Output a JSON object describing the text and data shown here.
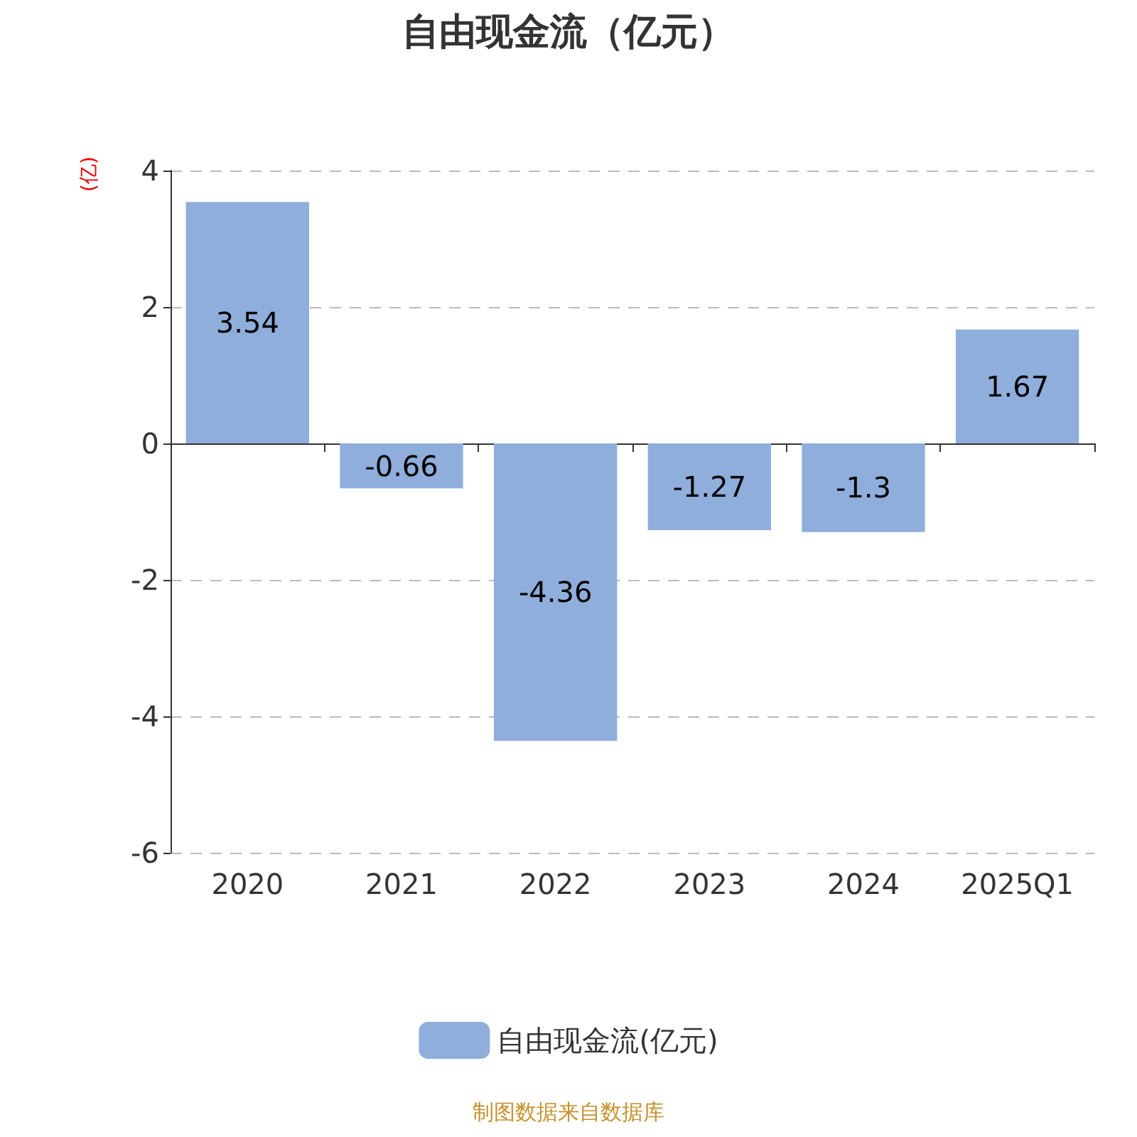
{
  "chart_data": {
    "type": "bar",
    "title": "自由现金流（亿元）",
    "ylabel": "(亿)",
    "categories": [
      "2020",
      "2021",
      "2022",
      "2023",
      "2024",
      "2025Q1"
    ],
    "series": [
      {
        "name": "自由现金流(亿元)",
        "color": "#8faedb",
        "values": [
          3.54,
          -0.66,
          -4.36,
          -1.27,
          -1.3,
          1.67
        ]
      }
    ],
    "ylim": [
      -6,
      4
    ],
    "yticks": [
      -6,
      -4,
      -2,
      0,
      2,
      4
    ],
    "grid": "y",
    "legend": "bottom",
    "data_labels": true,
    "annotations": [
      "制图数据来自数据库"
    ]
  }
}
